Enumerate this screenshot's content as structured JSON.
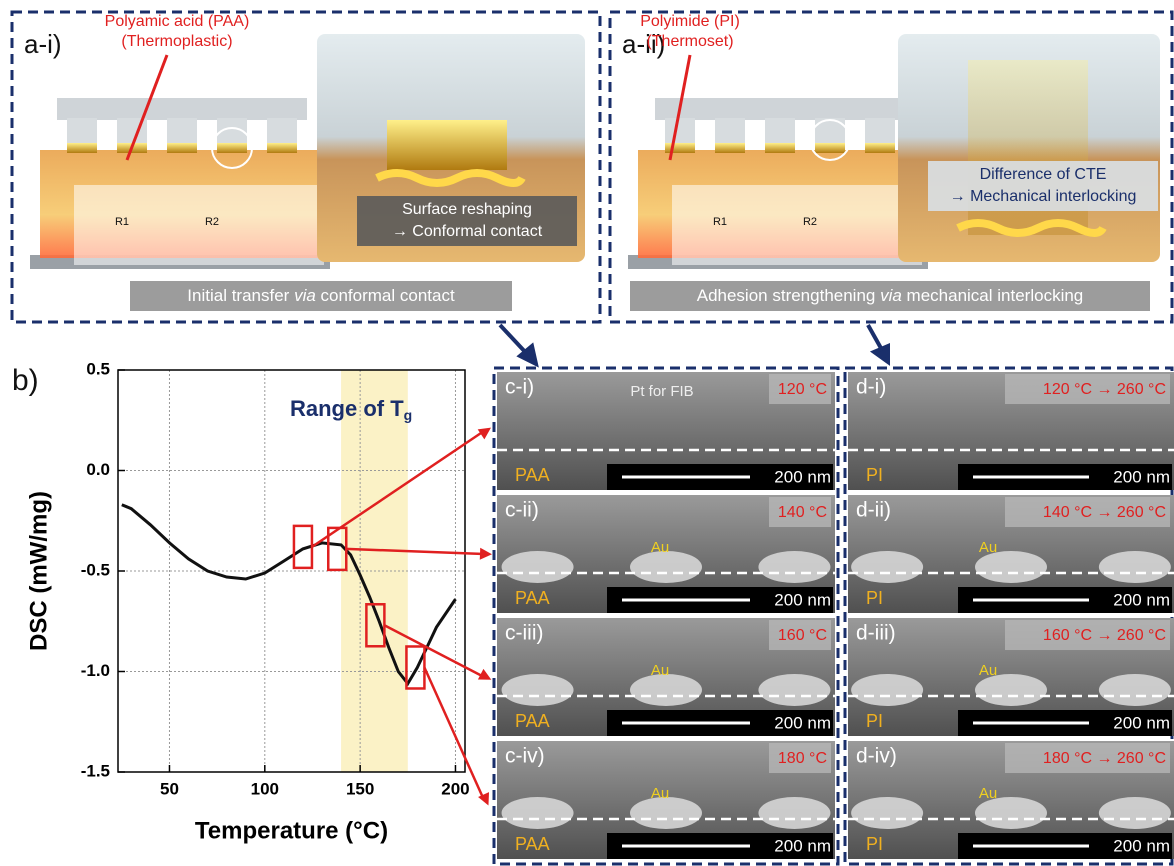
{
  "panel_a": [
    {
      "label": "a-i)",
      "polymer": "Polyamic acid (PAA)",
      "polymer_type": "(Thermoplastic)",
      "groups": [
        "R1",
        "R2"
      ],
      "callout": [
        "Surface reshaping",
        "→ Conformal contact"
      ],
      "caption": [
        "Initial transfer ",
        "via",
        " conformal contact"
      ]
    },
    {
      "label": "a-ii)",
      "polymer": "Polyimide (PI)",
      "polymer_type": "(Thermoset)",
      "groups": [
        "R1",
        "R2"
      ],
      "callout": [
        "Difference of CTE",
        "→ Mechanical interlocking"
      ],
      "caption": [
        "Adhesion strengthening ",
        "via",
        " mechanical interlocking"
      ]
    }
  ],
  "chart_data": {
    "type": "line",
    "label": "b)",
    "title": "Range of T",
    "title_subscript": "g",
    "xlabel": "Temperature (°C)",
    "ylabel": "DSC (mW/mg)",
    "x": [
      25,
      30,
      40,
      50,
      60,
      70,
      80,
      90,
      100,
      110,
      120,
      130,
      140,
      145,
      150,
      155,
      160,
      165,
      170,
      175,
      180,
      185,
      190,
      200
    ],
    "values": [
      -0.17,
      -0.19,
      -0.27,
      -0.36,
      -0.44,
      -0.5,
      -0.53,
      -0.54,
      -0.51,
      -0.45,
      -0.39,
      -0.36,
      -0.37,
      -0.42,
      -0.52,
      -0.63,
      -0.75,
      -0.88,
      -1.0,
      -1.06,
      -0.98,
      -0.88,
      -0.78,
      -0.64
    ],
    "color": "#111111",
    "xlim": [
      23,
      205
    ],
    "ylim": [
      -1.5,
      0.5
    ],
    "xticks": [
      50,
      100,
      150,
      200
    ],
    "yticks": [
      0.5,
      {
        "value": 0,
        "label": "0.0"
      },
      -0.5,
      {
        "value": -1,
        "label": "-1.0"
      },
      -1.5
    ],
    "grid": true,
    "highlight_range": [
      140,
      175
    ],
    "highlight_color": "#fbf2c6",
    "markers": {
      "x": [
        120,
        138,
        158,
        179
      ],
      "y": [
        -0.38,
        -0.39,
        -0.77,
        -0.98
      ],
      "color": "#e02020"
    }
  },
  "sem_columns": [
    {
      "panels": [
        {
          "label": "c-i)",
          "temperature": "120 °C",
          "material": "PAA",
          "scale": "200 nm",
          "note": "Pt for FIB"
        },
        {
          "label": "c-ii)",
          "temperature": "140 °C",
          "material": "PAA",
          "scale": "200 nm",
          "note": "Au"
        },
        {
          "label": "c-iii)",
          "temperature": "160 °C",
          "material": "PAA",
          "scale": "200 nm",
          "note": "Au"
        },
        {
          "label": "c-iv)",
          "temperature": "180 °C",
          "material": "PAA",
          "scale": "200 nm",
          "note": "Au"
        }
      ]
    },
    {
      "panels": [
        {
          "label": "d-i)",
          "temperature": "120 °C → 260 °C",
          "material": "PI",
          "scale": "200 nm"
        },
        {
          "label": "d-ii)",
          "temperature": "140 °C → 260 °C",
          "material": "PI",
          "scale": "200 nm",
          "note": "Au"
        },
        {
          "label": "d-iii)",
          "temperature": "160 °C → 260 °C",
          "material": "PI",
          "scale": "200 nm",
          "note": "Au"
        },
        {
          "label": "d-iv)",
          "temperature": "180 °C → 260 °C",
          "material": "PI",
          "scale": "200 nm",
          "note": "Au"
        }
      ]
    }
  ]
}
